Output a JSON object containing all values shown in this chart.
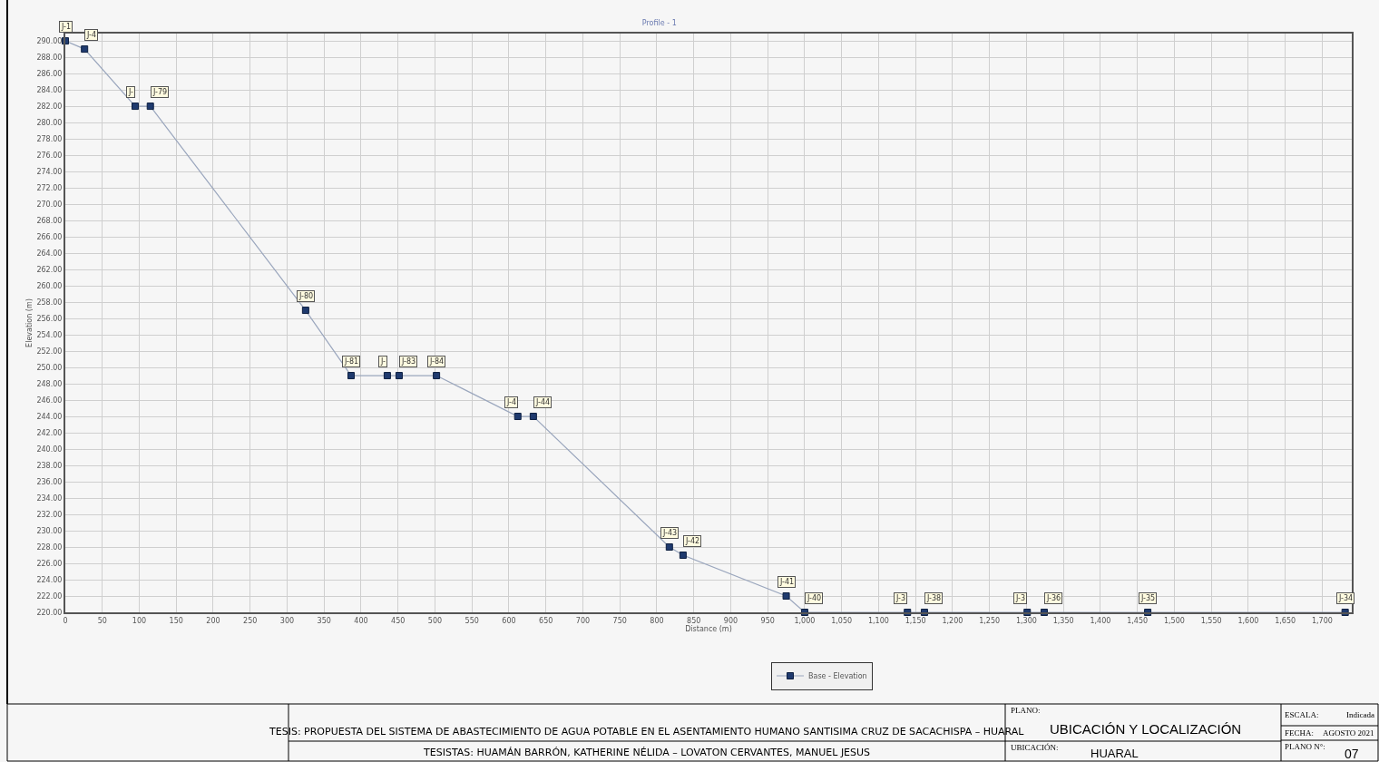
{
  "chart_data": {
    "type": "line",
    "title": "Profile - 1",
    "xlabel": "Distance (m)",
    "ylabel": "Elevation (m)",
    "x": [
      0,
      26,
      94.5,
      115,
      325,
      386.5,
      435.5,
      451.5,
      502,
      612,
      633,
      817,
      835.5,
      975,
      1000,
      1139,
      1162,
      1301,
      1324,
      1464,
      1731
    ],
    "series": [
      {
        "name": "Base - Elevation",
        "color": "#1f3a6e",
        "values": [
          290,
          289,
          282,
          282,
          257,
          249,
          249,
          249,
          249,
          244,
          244,
          228,
          227,
          222,
          220,
          220,
          220,
          220,
          220,
          220,
          220
        ]
      }
    ],
    "marker": "square",
    "line_style": "solid",
    "grid": true,
    "legend": "bottom",
    "xlim": [
      0,
      1740
    ],
    "ylim": [
      220,
      290.9
    ],
    "xticks": [
      0,
      50,
      100,
      150,
      200,
      250,
      300,
      350,
      400,
      450,
      500,
      550,
      600,
      650,
      700,
      750,
      800,
      850,
      900,
      950,
      {
        "value": 1000,
        "label": "1,000"
      },
      {
        "value": 1050,
        "label": "1,050"
      },
      {
        "value": 1100,
        "label": "1,100"
      },
      {
        "value": 1150,
        "label": "1,150"
      },
      {
        "value": 1200,
        "label": "1,200"
      },
      {
        "value": 1250,
        "label": "1,250"
      },
      {
        "value": 1300,
        "label": "1,300"
      },
      {
        "value": 1350,
        "label": "1,350"
      },
      {
        "value": 1400,
        "label": "1,400"
      },
      {
        "value": 1450,
        "label": "1,450"
      },
      {
        "value": 1500,
        "label": "1,500"
      },
      {
        "value": 1550,
        "label": "1,550"
      },
      {
        "value": 1600,
        "label": "1,600"
      },
      {
        "value": 1650,
        "label": "1,650"
      },
      {
        "value": 1700,
        "label": "1,700"
      }
    ],
    "yticks": [
      {
        "value": 220,
        "label": "220.00"
      },
      {
        "value": 222,
        "label": "222.00"
      },
      {
        "value": 224,
        "label": "224.00"
      },
      {
        "value": 226,
        "label": "226.00"
      },
      {
        "value": 228,
        "label": "228.00"
      },
      {
        "value": 230,
        "label": "230.00"
      },
      {
        "value": 232,
        "label": "232.00"
      },
      {
        "value": 234,
        "label": "234.00"
      },
      {
        "value": 236,
        "label": "236.00"
      },
      {
        "value": 238,
        "label": "238.00"
      },
      {
        "value": 240,
        "label": "240.00"
      },
      {
        "value": 242,
        "label": "242.00"
      },
      {
        "value": 244,
        "label": "244.00"
      },
      {
        "value": 246,
        "label": "246.00"
      },
      {
        "value": 248,
        "label": "248.00"
      },
      {
        "value": 250,
        "label": "250.00"
      },
      {
        "value": 252,
        "label": "252.00"
      },
      {
        "value": 254,
        "label": "254.00"
      },
      {
        "value": 256,
        "label": "256.00"
      },
      {
        "value": 258,
        "label": "258.00"
      },
      {
        "value": 260,
        "label": "260.00"
      },
      {
        "value": 262,
        "label": "262.00"
      },
      {
        "value": 264,
        "label": "264.00"
      },
      {
        "value": 266,
        "label": "266.00"
      },
      {
        "value": 268,
        "label": "268.00"
      },
      {
        "value": 270,
        "label": "270.00"
      },
      {
        "value": 272,
        "label": "272.00"
      },
      {
        "value": 274,
        "label": "274.00"
      },
      {
        "value": 276,
        "label": "276.00"
      },
      {
        "value": 278,
        "label": "278.00"
      },
      {
        "value": 280,
        "label": "280.00"
      },
      {
        "value": 282,
        "label": "282.00"
      },
      {
        "value": 284,
        "label": "284.00"
      },
      {
        "value": 286,
        "label": "286.00"
      },
      {
        "value": 288,
        "label": "288.00"
      },
      {
        "value": 290,
        "label": "290.00"
      }
    ],
    "annotations": [
      {
        "text": "J-1",
        "x": 0,
        "y": 290
      },
      {
        "text": "J-4",
        "x": 26,
        "y": 289
      },
      {
        "text": "J-",
        "x": 94.5,
        "y": 282
      },
      {
        "text": "J-79",
        "x": 115,
        "y": 282
      },
      {
        "text": "J-80",
        "x": 325,
        "y": 257
      },
      {
        "text": "J-81",
        "x": 386.5,
        "y": 249
      },
      {
        "text": "J-",
        "x": 435.5,
        "y": 249
      },
      {
        "text": "J-83",
        "x": 451.5,
        "y": 249
      },
      {
        "text": "J-84",
        "x": 502,
        "y": 249
      },
      {
        "text": "J-4",
        "x": 612,
        "y": 244
      },
      {
        "text": "J-44",
        "x": 633,
        "y": 244
      },
      {
        "text": "J-43",
        "x": 817,
        "y": 228
      },
      {
        "text": "J-42",
        "x": 835.5,
        "y": 227
      },
      {
        "text": "J-41",
        "x": 975,
        "y": 222
      },
      {
        "text": "J-40",
        "x": 1000,
        "y": 220
      },
      {
        "text": "J-3",
        "x": 1139,
        "y": 220
      },
      {
        "text": "J-38",
        "x": 1162,
        "y": 220
      },
      {
        "text": "J-3",
        "x": 1301,
        "y": 220
      },
      {
        "text": "J-36",
        "x": 1324,
        "y": 220
      },
      {
        "text": "J-35",
        "x": 1464,
        "y": 220
      },
      {
        "text": "J-34",
        "x": 1731,
        "y": 220
      },
      "TESIS: PROPUESTA DEL SISTEMA DE ABASTECIMIENTO DE AGUA POTABLE EN EL ASENTAMIENTO HUMANO SANTISIMA CRUZ DE SACACHISPA – HUARAL",
      "TESISTAS: HUAMÁN BARRÓN, KATHERINE NÉLIDA – LOVATON CERVANTES, MANUEL JESUS",
      "PLANO:",
      "UBICACIÓN Y LOCALIZACIÓN",
      "UBICACIÓN:",
      "HUARAL",
      "ESCALA:",
      "Indicada",
      "FECHA:",
      "AGOSTO 2021",
      "PLANO N°:",
      "07"
    ]
  }
}
